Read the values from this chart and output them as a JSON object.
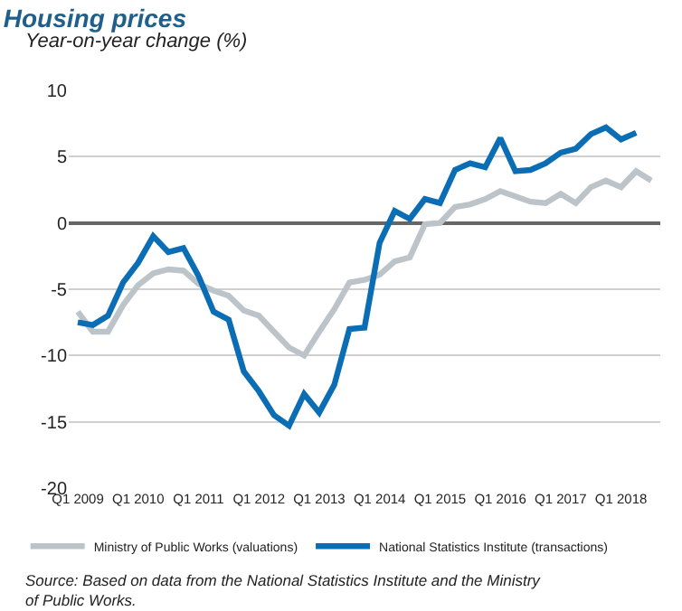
{
  "chart_data": {
    "type": "line",
    "title": "Housing prices",
    "subtitle": "Year-on-year change (%)",
    "categories": [
      "Q1 2009",
      null,
      null,
      null,
      "Q1 2010",
      null,
      null,
      null,
      "Q1 2011",
      null,
      null,
      null,
      "Q1 2012",
      null,
      null,
      null,
      "Q1 2013",
      null,
      null,
      null,
      "Q1 2014",
      null,
      null,
      null,
      "Q1 2015",
      null,
      null,
      null,
      "Q1 2016",
      null,
      null,
      null,
      "Q1 2017",
      null,
      null,
      null,
      "Q1 2018",
      null,
      null
    ],
    "series": [
      {
        "name": "Ministry of Public Works (valuations)",
        "color": "#bcc4c9",
        "values": [
          -6.7,
          -8.2,
          -8.2,
          -6.2,
          -4.7,
          -3.8,
          -3.5,
          -3.6,
          -4.6,
          -5.1,
          -5.5,
          -6.6,
          -7.0,
          -8.2,
          -9.4,
          -10.0,
          -8.2,
          -6.5,
          -4.5,
          -4.3,
          -3.9,
          -2.9,
          -2.6,
          -0.1,
          0.0,
          1.2,
          1.4,
          1.8,
          2.4,
          2.0,
          1.6,
          1.5,
          2.2,
          1.5,
          2.7,
          3.2,
          2.7,
          3.9,
          3.2
        ]
      },
      {
        "name": "National Statistics Institute (transactions)",
        "color": "#0b6db3",
        "values": [
          -7.5,
          -7.7,
          -7.0,
          -4.5,
          -3.0,
          -1.0,
          -2.2,
          -1.9,
          -4.0,
          -6.7,
          -7.3,
          -11.2,
          -12.7,
          -14.5,
          -15.3,
          -12.9,
          -14.3,
          -12.2,
          -8.0,
          -7.9,
          -1.5,
          0.9,
          0.3,
          1.8,
          1.5,
          4.0,
          4.5,
          4.2,
          6.4,
          3.9,
          4.0,
          4.5,
          5.3,
          5.6,
          6.7,
          7.2,
          6.3,
          6.8,
          null
        ]
      }
    ],
    "ylim": [
      -20,
      10
    ],
    "yticks": [
      -20,
      -15,
      -10,
      -5,
      0,
      5,
      10
    ],
    "grid": "y",
    "legend": "bottom",
    "marker": "none",
    "line_style": "solid",
    "annotations": [
      "Source: Based on data from the National Statistics Institute and the Ministry of Public Works."
    ]
  }
}
